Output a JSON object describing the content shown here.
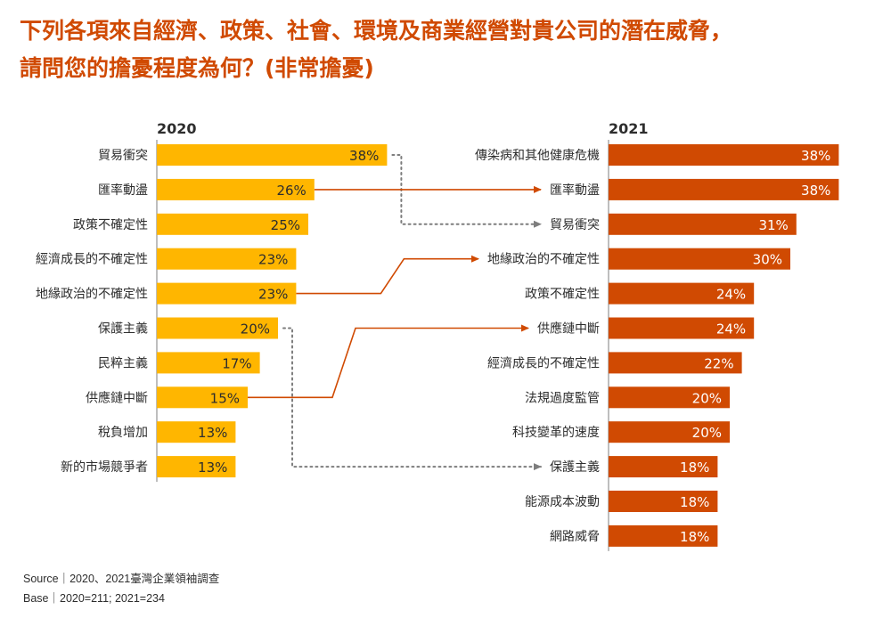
{
  "title_line1": "下列各項來自經濟、政策、社會、環境及商業經營對貴公司的潛在威脅，",
  "title_line2": "請問您的擔憂程度為何？(非常擔憂)",
  "footer": {
    "source": "Source｜2020、2021臺灣企業領袖調查",
    "base": "Base｜2020=211; 2021=234"
  },
  "colors": {
    "title": "#d04a02",
    "bar_2020": "#ffb600",
    "bar_2021": "#d04a02",
    "arrow_solid": "#d04a02",
    "arrow_dotted": "#7d7d7d"
  },
  "chart_data": [
    {
      "type": "bar",
      "orientation": "horizontal",
      "title": "2020",
      "categories": [
        "貿易衝突",
        "匯率動盪",
        "政策不確定性",
        "經濟成長的不確定性",
        "地緣政治的不確定性",
        "保護主義",
        "民粹主義",
        "供應鏈中斷",
        "稅負增加",
        "新的市場競爭者"
      ],
      "values": [
        38,
        26,
        25,
        23,
        23,
        20,
        17,
        15,
        13,
        13
      ],
      "labels": [
        "38%",
        "26%",
        "25%",
        "23%",
        "23%",
        "20%",
        "17%",
        "15%",
        "13%",
        "13%"
      ],
      "unit": "%"
    },
    {
      "type": "bar",
      "orientation": "horizontal",
      "title": "2021",
      "categories": [
        "傳染病和其他健康危機",
        "匯率動盪",
        "貿易衝突",
        "地緣政治的不確定性",
        "政策不確定性",
        "供應鏈中斷",
        "經濟成長的不確定性",
        "法規過度監管",
        "科技變革的速度",
        "保護主義",
        "能源成本波動",
        "網路威脅"
      ],
      "values": [
        38,
        38,
        31,
        30,
        24,
        24,
        22,
        20,
        20,
        18,
        18,
        18
      ],
      "labels": [
        "38%",
        "38%",
        "31%",
        "30%",
        "24%",
        "24%",
        "22%",
        "20%",
        "20%",
        "18%",
        "18%",
        "18%"
      ],
      "unit": "%"
    }
  ],
  "connectors": [
    {
      "from": "貿易衝突",
      "style": "dotted"
    },
    {
      "from": "匯率動盪",
      "style": "solid"
    },
    {
      "from": "地緣政治的不確定性",
      "style": "solid"
    },
    {
      "from": "保護主義",
      "style": "dotted"
    },
    {
      "from": "供應鏈中斷",
      "style": "solid"
    }
  ]
}
